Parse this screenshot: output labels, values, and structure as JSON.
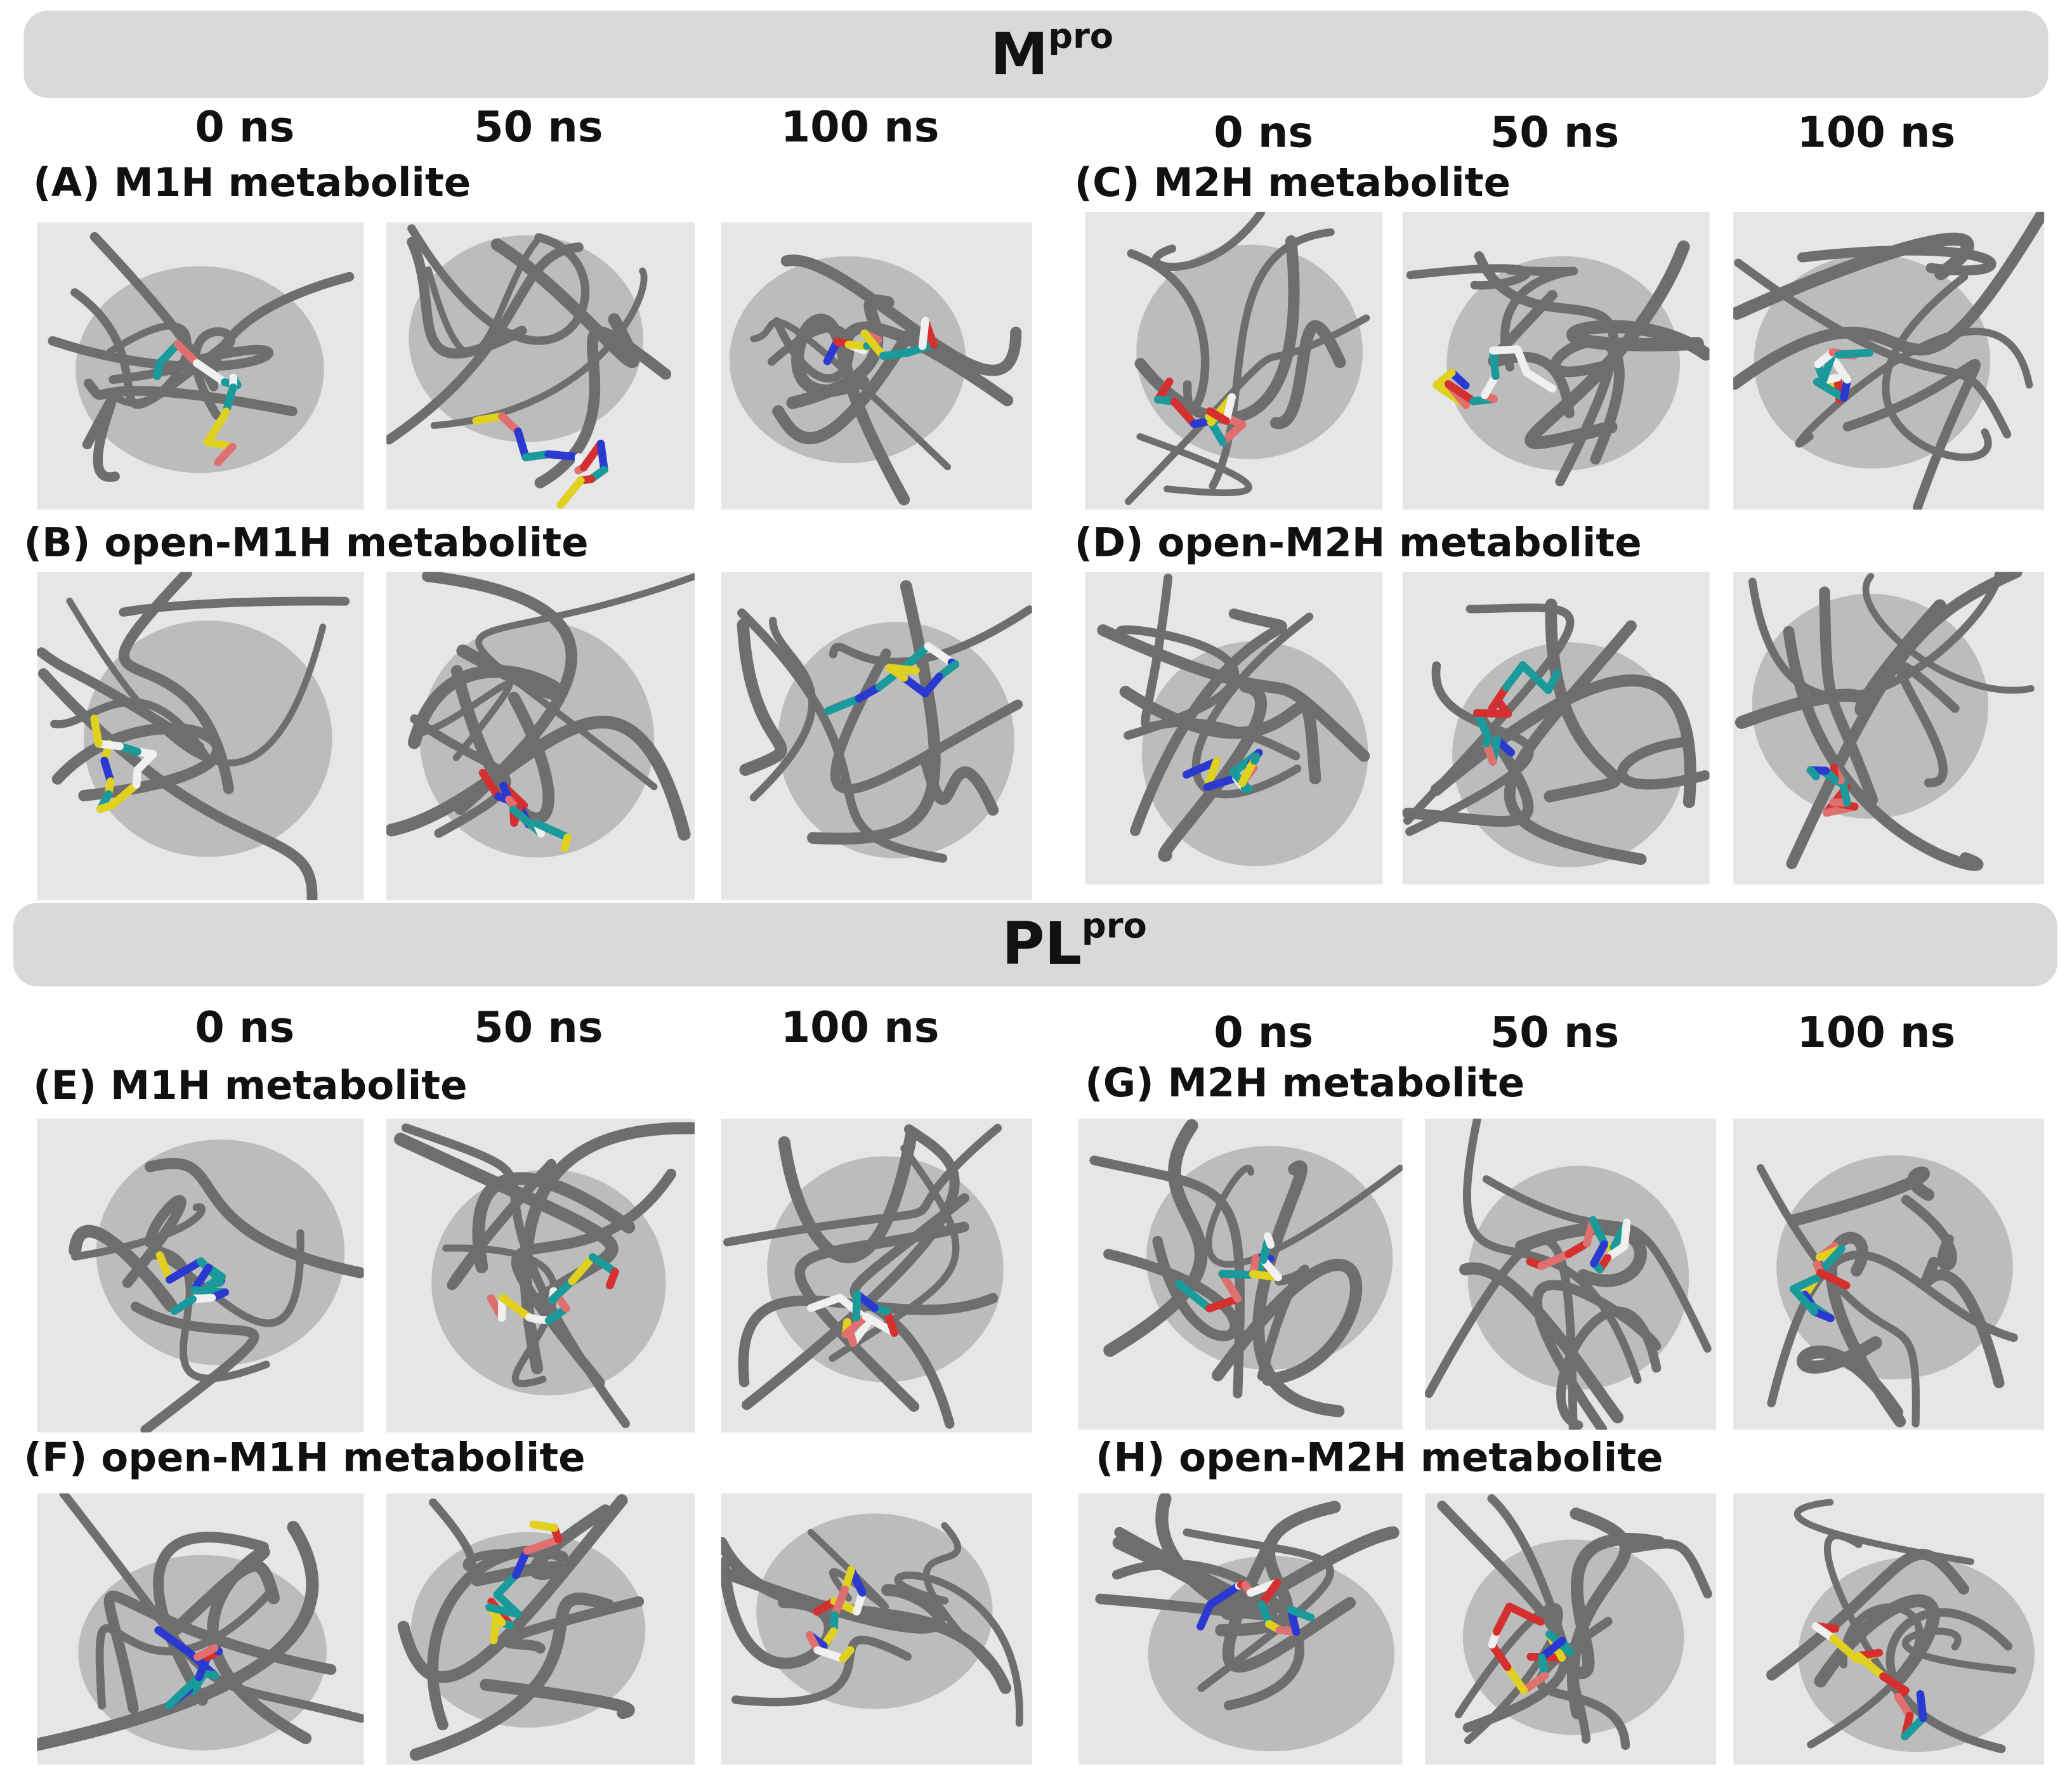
{
  "sections": [
    {
      "title": {
        "main": "M",
        "sup": "pro"
      },
      "groups": [
        {
          "times": [
            "0 ns",
            "50 ns",
            "100 ns"
          ],
          "panels": [
            {
              "label": "(A) M1H metabolite"
            },
            {
              "label": "(B) open-M1H metabolite"
            }
          ]
        },
        {
          "times": [
            "0 ns",
            "50 ns",
            "100 ns"
          ],
          "panels": [
            {
              "label": "(C) M2H metabolite"
            },
            {
              "label": "(D) open-M2H metabolite"
            }
          ]
        }
      ]
    },
    {
      "title": {
        "main": "PL",
        "sup": "pro"
      },
      "groups": [
        {
          "times": [
            "0 ns",
            "50 ns",
            "100 ns"
          ],
          "panels": [
            {
              "label": "(E) M1H metabolite"
            },
            {
              "label": "(F) open-M1H metabolite"
            }
          ]
        },
        {
          "times": [
            "0 ns",
            "50 ns",
            "100 ns"
          ],
          "panels": [
            {
              "label": "(G) M2H metabolite"
            },
            {
              "label": "(H) open-M2H metabolite"
            }
          ]
        }
      ]
    }
  ]
}
